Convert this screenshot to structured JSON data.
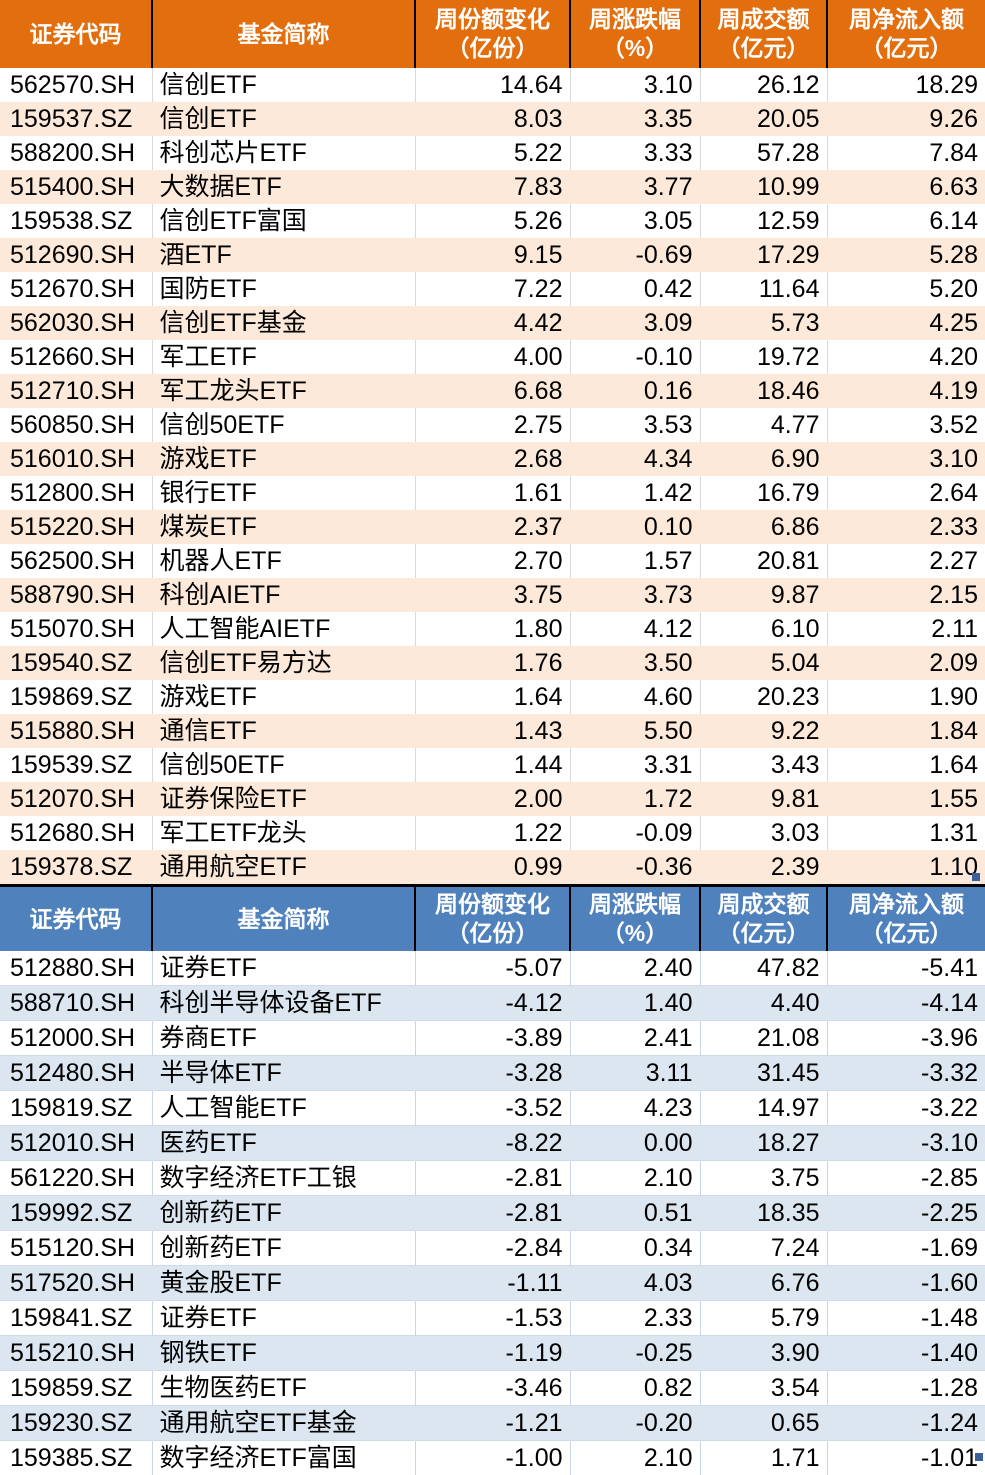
{
  "colors": {
    "inflow_header_bg": "#E26E0E",
    "inflow_row_alt_bg": "#FDE9D9",
    "outflow_header_bg": "#4F81BD",
    "outflow_row_alt_bg": "#DCE6F1",
    "header_text": "#FFFFFF",
    "body_text": "#000000",
    "table_separator": "#000000",
    "fill_handle": "#3A5F9B"
  },
  "column_headers": [
    {
      "line1": "证券代码",
      "line2": ""
    },
    {
      "line1": "基金简称",
      "line2": ""
    },
    {
      "line1": "周份额变化",
      "line2": "（亿份）"
    },
    {
      "line1": "周涨跌幅",
      "line2": "（%）"
    },
    {
      "line1": "周成交额",
      "line2": "（亿元）"
    },
    {
      "line1": "周净流入额",
      "line2": "（亿元）"
    }
  ],
  "chart_data": [
    {
      "type": "table",
      "columns": [
        "证券代码",
        "基金简称",
        "周份额变化（亿份）",
        "周涨跌幅（%）",
        "周成交额（亿元）",
        "周净流入额（亿元）"
      ],
      "rows": [
        [
          "562570.SH",
          "信创ETF",
          "14.64",
          "3.10",
          "26.12",
          "18.29"
        ],
        [
          "159537.SZ",
          "信创ETF",
          "8.03",
          "3.35",
          "20.05",
          "9.26"
        ],
        [
          "588200.SH",
          "科创芯片ETF",
          "5.22",
          "3.33",
          "57.28",
          "7.84"
        ],
        [
          "515400.SH",
          "大数据ETF",
          "7.83",
          "3.77",
          "10.99",
          "6.63"
        ],
        [
          "159538.SZ",
          "信创ETF富国",
          "5.26",
          "3.05",
          "12.59",
          "6.14"
        ],
        [
          "512690.SH",
          "酒ETF",
          "9.15",
          "-0.69",
          "17.29",
          "5.28"
        ],
        [
          "512670.SH",
          "国防ETF",
          "7.22",
          "0.42",
          "11.64",
          "5.20"
        ],
        [
          "562030.SH",
          "信创ETF基金",
          "4.42",
          "3.09",
          "5.73",
          "4.25"
        ],
        [
          "512660.SH",
          "军工ETF",
          "4.00",
          "-0.10",
          "19.72",
          "4.20"
        ],
        [
          "512710.SH",
          "军工龙头ETF",
          "6.68",
          "0.16",
          "18.46",
          "4.19"
        ],
        [
          "560850.SH",
          "信创50ETF",
          "2.75",
          "3.53",
          "4.77",
          "3.52"
        ],
        [
          "516010.SH",
          "游戏ETF",
          "2.68",
          "4.34",
          "6.90",
          "3.10"
        ],
        [
          "512800.SH",
          "银行ETF",
          "1.61",
          "1.42",
          "16.79",
          "2.64"
        ],
        [
          "515220.SH",
          "煤炭ETF",
          "2.37",
          "0.10",
          "6.86",
          "2.33"
        ],
        [
          "562500.SH",
          "机器人ETF",
          "2.70",
          "1.57",
          "20.81",
          "2.27"
        ],
        [
          "588790.SH",
          "科创AIETF",
          "3.75",
          "3.73",
          "9.87",
          "2.15"
        ],
        [
          "515070.SH",
          "人工智能AIETF",
          "1.80",
          "4.12",
          "6.10",
          "2.11"
        ],
        [
          "159540.SZ",
          "信创ETF易方达",
          "1.76",
          "3.50",
          "5.04",
          "2.09"
        ],
        [
          "159869.SZ",
          "游戏ETF",
          "1.64",
          "4.60",
          "20.23",
          "1.90"
        ],
        [
          "515880.SH",
          "通信ETF",
          "1.43",
          "5.50",
          "9.22",
          "1.84"
        ],
        [
          "159539.SZ",
          "信创50ETF",
          "1.44",
          "3.31",
          "3.43",
          "1.64"
        ],
        [
          "512070.SH",
          "证券保险ETF",
          "2.00",
          "1.72",
          "9.81",
          "1.55"
        ],
        [
          "512680.SH",
          "军工ETF龙头",
          "1.22",
          "-0.09",
          "3.03",
          "1.31"
        ],
        [
          "159378.SZ",
          "通用航空ETF",
          "0.99",
          "-0.36",
          "2.39",
          "1.10"
        ]
      ]
    },
    {
      "type": "table",
      "columns": [
        "证券代码",
        "基金简称",
        "周份额变化（亿份）",
        "周涨跌幅（%）",
        "周成交额（亿元）",
        "周净流入额（亿元）"
      ],
      "rows": [
        [
          "512880.SH",
          "证券ETF",
          "-5.07",
          "2.40",
          "47.82",
          "-5.41"
        ],
        [
          "588710.SH",
          "科创半导体设备ETF",
          "-4.12",
          "1.40",
          "4.40",
          "-4.14"
        ],
        [
          "512000.SH",
          "券商ETF",
          "-3.89",
          "2.41",
          "21.08",
          "-3.96"
        ],
        [
          "512480.SH",
          "半导体ETF",
          "-3.28",
          "3.11",
          "31.45",
          "-3.32"
        ],
        [
          "159819.SZ",
          "人工智能ETF",
          "-3.52",
          "4.23",
          "14.97",
          "-3.22"
        ],
        [
          "512010.SH",
          "医药ETF",
          "-8.22",
          "0.00",
          "18.27",
          "-3.10"
        ],
        [
          "561220.SH",
          "数字经济ETF工银",
          "-2.81",
          "2.10",
          "3.75",
          "-2.85"
        ],
        [
          "159992.SZ",
          "创新药ETF",
          "-2.81",
          "0.51",
          "18.35",
          "-2.25"
        ],
        [
          "515120.SH",
          "创新药ETF",
          "-2.84",
          "0.34",
          "7.24",
          "-1.69"
        ],
        [
          "517520.SH",
          "黄金股ETF",
          "-1.11",
          "4.03",
          "6.76",
          "-1.60"
        ],
        [
          "159841.SZ",
          "证券ETF",
          "-1.53",
          "2.33",
          "5.79",
          "-1.48"
        ],
        [
          "515210.SH",
          "钢铁ETF",
          "-1.19",
          "-0.25",
          "3.90",
          "-1.40"
        ],
        [
          "159859.SZ",
          "生物医药ETF",
          "-3.46",
          "0.82",
          "3.54",
          "-1.28"
        ],
        [
          "159230.SZ",
          "通用航空ETF基金",
          "-1.21",
          "-0.20",
          "0.65",
          "-1.24"
        ],
        [
          "159385.SZ",
          "数字经济ETF富国",
          "-1.00",
          "2.10",
          "1.71",
          "-1.01"
        ]
      ]
    }
  ]
}
